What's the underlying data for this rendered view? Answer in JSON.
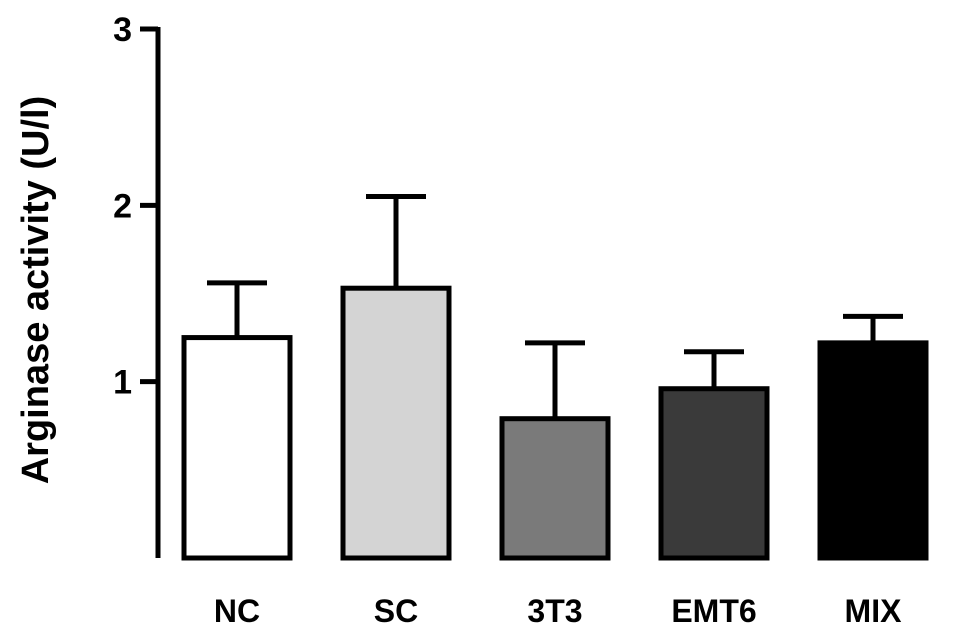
{
  "chart_data": {
    "type": "bar",
    "title": "",
    "xlabel": "",
    "ylabel": "Arginase activity (U/l)",
    "ylim": [
      0,
      3
    ],
    "yticks": [
      1,
      2,
      3
    ],
    "ytick_labels": [
      "1",
      "2",
      "3"
    ],
    "grid": false,
    "legend": "none",
    "categories": [
      "NC",
      "SC",
      "3T3",
      "EMT6",
      "MIX"
    ],
    "values": [
      1.25,
      1.53,
      0.79,
      0.96,
      1.22
    ],
    "error_upper": [
      0.31,
      0.52,
      0.43,
      0.21,
      0.15
    ],
    "bar_colors": [
      "#ffffff",
      "#d4d4d4",
      "#7a7a7a",
      "#3a3a3a",
      "#000000"
    ],
    "edge_color": "#000000"
  }
}
